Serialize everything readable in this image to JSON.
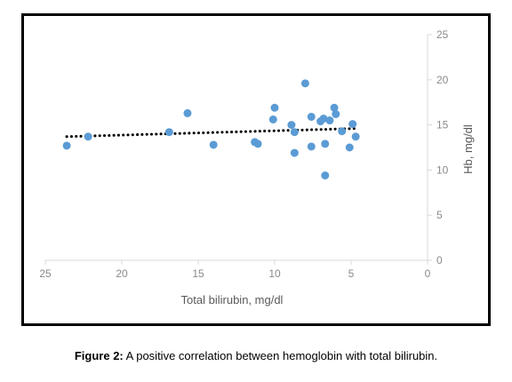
{
  "caption": {
    "label": "Figure 2:",
    "text": " A positive correlation between hemoglobin with total bilirubin."
  },
  "chart_data": {
    "type": "scatter",
    "xlabel": "Total bilirubin, mg/dl",
    "ylabel": "Hb, mg/dl",
    "xlim": [
      0,
      25
    ],
    "ylim": [
      0,
      25
    ],
    "x_reversed": true,
    "y_axis_side": "right",
    "grid": false,
    "legend": "none",
    "x_ticks": [
      25,
      20,
      15,
      10,
      5,
      0
    ],
    "y_ticks": [
      0,
      5,
      10,
      15,
      20,
      25
    ],
    "marker_color": "#5b9bd5",
    "trendline": {
      "style": "dotted",
      "color": "#000000",
      "x": [
        23.6,
        4.8
      ],
      "y": [
        13.7,
        14.6
      ]
    },
    "points": [
      {
        "x": 23.6,
        "y": 12.7
      },
      {
        "x": 22.2,
        "y": 13.7
      },
      {
        "x": 16.9,
        "y": 14.2
      },
      {
        "x": 15.7,
        "y": 16.3
      },
      {
        "x": 14.0,
        "y": 12.8
      },
      {
        "x": 11.3,
        "y": 13.1
      },
      {
        "x": 11.1,
        "y": 12.9
      },
      {
        "x": 10.1,
        "y": 15.6
      },
      {
        "x": 10.0,
        "y": 16.9
      },
      {
        "x": 8.9,
        "y": 15.0
      },
      {
        "x": 8.7,
        "y": 14.2
      },
      {
        "x": 8.7,
        "y": 11.9
      },
      {
        "x": 8.0,
        "y": 19.6
      },
      {
        "x": 7.6,
        "y": 15.9
      },
      {
        "x": 7.6,
        "y": 12.6
      },
      {
        "x": 7.0,
        "y": 15.4
      },
      {
        "x": 6.8,
        "y": 15.7
      },
      {
        "x": 6.7,
        "y": 12.9
      },
      {
        "x": 6.7,
        "y": 9.4
      },
      {
        "x": 6.4,
        "y": 15.5
      },
      {
        "x": 6.1,
        "y": 16.9
      },
      {
        "x": 6.0,
        "y": 16.2
      },
      {
        "x": 5.6,
        "y": 14.3
      },
      {
        "x": 5.1,
        "y": 12.5
      },
      {
        "x": 4.9,
        "y": 15.1
      },
      {
        "x": 4.7,
        "y": 13.7
      }
    ]
  }
}
